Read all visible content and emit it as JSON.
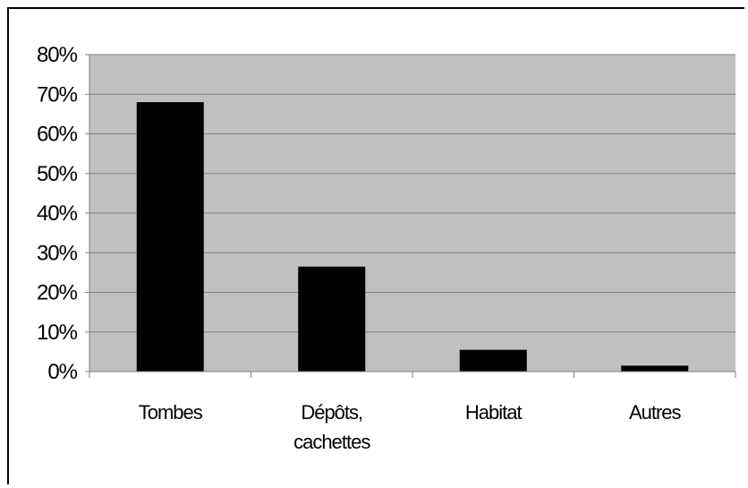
{
  "chart_data": {
    "type": "bar",
    "categories": [
      "Tombes",
      "Dépôts,\ncachettes",
      "Habitat",
      "Autres"
    ],
    "values": [
      68,
      26.5,
      5.5,
      1.5
    ],
    "y_unit": "%",
    "ylim": [
      0,
      80
    ],
    "yticks": [
      0,
      10,
      20,
      30,
      40,
      50,
      60,
      70,
      80
    ],
    "ytick_labels": [
      "0%",
      "10%",
      "20%",
      "30%",
      "40%",
      "50%",
      "60%",
      "70%",
      "80%"
    ],
    "grid": true,
    "legend": "none",
    "title": "",
    "xlabel": "",
    "ylabel": "",
    "colors": {
      "plot_background": "#c0c0c0",
      "bar": "#000000",
      "gridline": "#808080",
      "axis": "#808080"
    }
  }
}
